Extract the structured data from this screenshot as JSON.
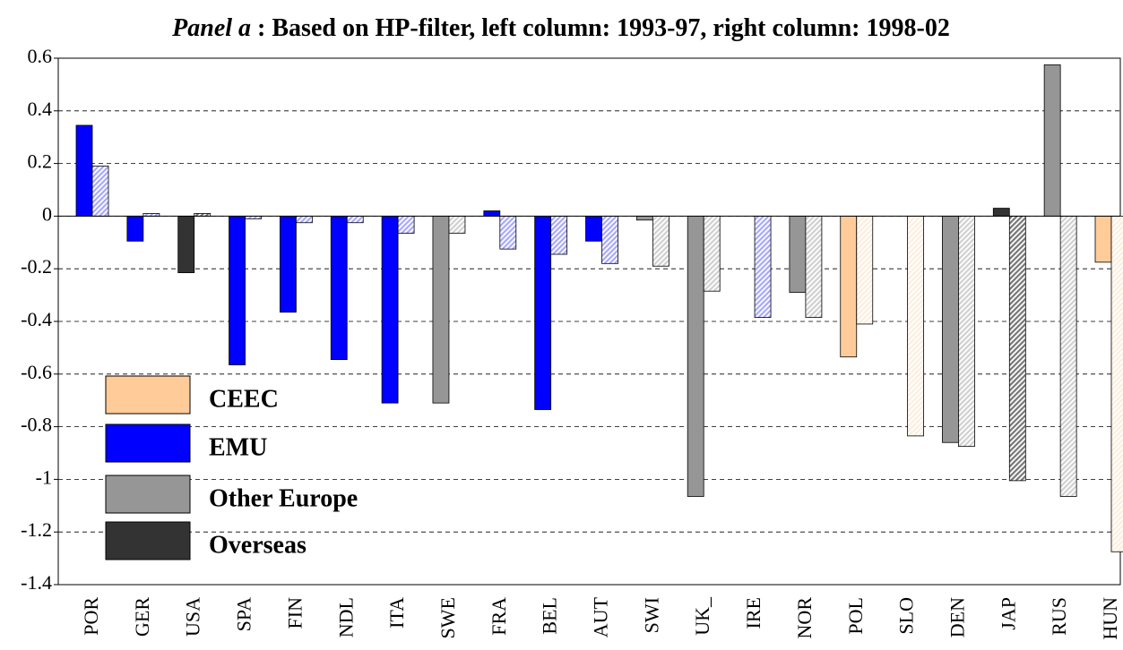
{
  "chart_data": {
    "type": "bar",
    "title_prefix": "Panel a",
    "title": " : Based on HP-filter, left column: 1993-97, right column: 1998-02",
    "categories": [
      "POR",
      "GER",
      "USA",
      "SPA",
      "FIN",
      "NDL",
      "ITA",
      "SWE",
      "FRA",
      "BEL",
      "AUT",
      "SWI",
      "UK_",
      "IRE",
      "NOR",
      "POL",
      "SLO",
      "DEN",
      "JAP",
      "RUS",
      "HUN"
    ],
    "category_group": [
      1,
      1,
      3,
      1,
      1,
      1,
      1,
      2,
      1,
      1,
      1,
      2,
      2,
      1,
      2,
      0,
      0,
      2,
      3,
      2,
      0
    ],
    "groups": [
      {
        "name": "CEEC",
        "color": "#ffcc99",
        "light": "#fdeedd"
      },
      {
        "name": "EMU",
        "color": "#0000ff",
        "light": "#a8a8ff"
      },
      {
        "name": "Other Europe",
        "color": "#969696",
        "light": "#d0d0d0"
      },
      {
        "name": "Overseas",
        "color": "#333333",
        "light": "#777777"
      }
    ],
    "series": [
      {
        "hatched": false,
        "values": [
          0.345,
          -0.095,
          -0.215,
          -0.565,
          -0.365,
          -0.545,
          -0.71,
          -0.71,
          0.02,
          -0.735,
          -0.095,
          -0.015,
          -1.065,
          null,
          -0.29,
          -0.535,
          null,
          -0.86,
          0.03,
          0.575,
          -0.175
        ]
      },
      {
        "hatched": true,
        "values": [
          0.19,
          0.01,
          0.01,
          -0.01,
          -0.025,
          -0.025,
          -0.065,
          -0.065,
          -0.125,
          -0.145,
          -0.18,
          -0.19,
          -0.285,
          -0.385,
          -0.385,
          -0.41,
          -0.835,
          -0.875,
          -1.005,
          -1.065,
          -1.275
        ]
      }
    ],
    "ylim": [
      -1.4,
      0.6
    ],
    "yticks": [
      0.6,
      0.4,
      0.2,
      0,
      -0.2,
      -0.4,
      -0.6,
      -0.8,
      -1,
      -1.2,
      -1.4
    ],
    "grid": true
  }
}
